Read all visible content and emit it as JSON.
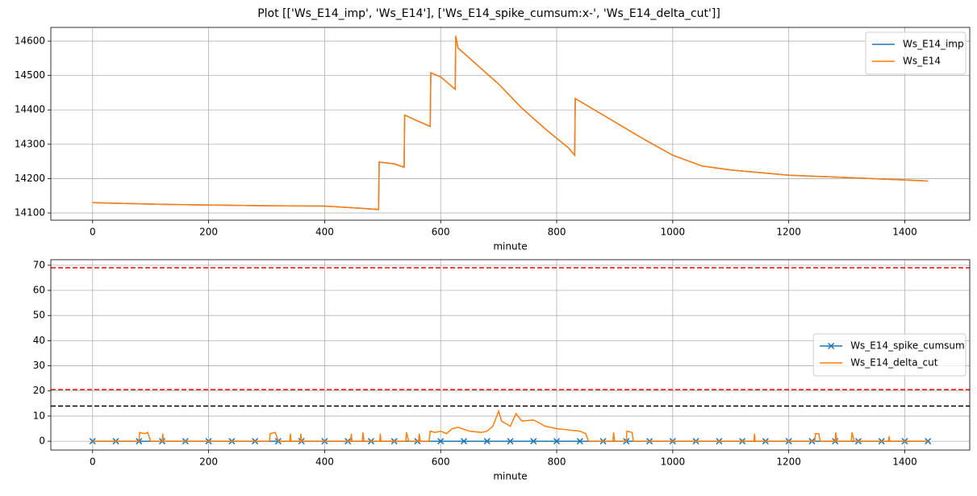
{
  "title": "Plot [['Ws_E14_imp', 'Ws_E14'], ['Ws_E14_spike_cumsum:x-', 'Ws_E14_delta_cut']]",
  "chart_data": [
    {
      "type": "line",
      "xlabel": "minute",
      "xlim": [
        -72,
        1512
      ],
      "ylim": [
        14079,
        14640
      ],
      "xticks": [
        0,
        200,
        400,
        600,
        800,
        1000,
        1200,
        1400
      ],
      "yticks": [
        14100,
        14200,
        14300,
        14400,
        14500,
        14600
      ],
      "grid": true,
      "legend": "upper right",
      "series": [
        {
          "name": "Ws_E14_imp",
          "color": "#1f77b4",
          "x": [
            0,
            120,
            300,
            400,
            460,
            493,
            494,
            520,
            537,
            538,
            560,
            582,
            583,
            600,
            625,
            626,
            630,
            660,
            700,
            740,
            780,
            820,
            831,
            832,
            860,
            900,
            950,
            1000,
            1050,
            1100,
            1200,
            1300,
            1440
          ],
          "values": [
            14130,
            14125,
            14121,
            14120,
            14114,
            14110,
            14248,
            14243,
            14233,
            14385,
            14368,
            14352,
            14508,
            14496,
            14460,
            14615,
            14580,
            14535,
            14475,
            14405,
            14345,
            14290,
            14268,
            14433,
            14405,
            14365,
            14315,
            14268,
            14237,
            14225,
            14210,
            14203,
            14193
          ]
        },
        {
          "name": "Ws_E14",
          "color": "#ff7f0e",
          "x": [
            0,
            120,
            300,
            400,
            460,
            493,
            494,
            520,
            537,
            538,
            560,
            582,
            583,
            600,
            625,
            626,
            630,
            660,
            700,
            740,
            780,
            820,
            831,
            832,
            860,
            900,
            950,
            1000,
            1050,
            1100,
            1200,
            1300,
            1440
          ],
          "values": [
            14130,
            14125,
            14121,
            14120,
            14114,
            14110,
            14248,
            14243,
            14233,
            14385,
            14368,
            14352,
            14508,
            14496,
            14460,
            14615,
            14580,
            14535,
            14475,
            14405,
            14345,
            14290,
            14268,
            14433,
            14405,
            14365,
            14315,
            14268,
            14237,
            14225,
            14210,
            14203,
            14193
          ]
        }
      ]
    },
    {
      "type": "line",
      "xlabel": "minute",
      "xlim": [
        -72,
        1512
      ],
      "ylim": [
        -3.5,
        72.2
      ],
      "xticks": [
        0,
        200,
        400,
        600,
        800,
        1000,
        1200,
        1400
      ],
      "yticks": [
        0,
        10,
        20,
        30,
        40,
        50,
        60,
        70
      ],
      "grid": true,
      "legend": "center right",
      "hlines": [
        {
          "value": 69,
          "color": "#ff0000",
          "linestyle": "dashed"
        },
        {
          "value": 20.5,
          "color": "#ff0000",
          "linestyle": "dashed"
        },
        {
          "value": 14,
          "color": "#000000",
          "linestyle": "dashed"
        }
      ],
      "series": [
        {
          "name": "Ws_E14_spike_cumsum",
          "color": "#1f77b4",
          "marker": "x",
          "x": [
            0,
            40,
            80,
            120,
            160,
            200,
            240,
            280,
            320,
            360,
            400,
            440,
            480,
            520,
            560,
            600,
            640,
            680,
            720,
            760,
            800,
            840,
            880,
            920,
            960,
            1000,
            1040,
            1080,
            1120,
            1160,
            1200,
            1240,
            1280,
            1320,
            1360,
            1400,
            1440
          ],
          "values": [
            0,
            0,
            0,
            0,
            0,
            0,
            0,
            0,
            0,
            0,
            0,
            0,
            0,
            0,
            0,
            0,
            0,
            0,
            0,
            0,
            0,
            0,
            0,
            0,
            0,
            0,
            0,
            0,
            0,
            0,
            0,
            0,
            0,
            0,
            0,
            0,
            0
          ]
        },
        {
          "name": "Ws_E14_delta_cut",
          "color": "#ff7f0e",
          "x": [
            0,
            80,
            81,
            90,
            95,
            100,
            120,
            121,
            122,
            305,
            306,
            315,
            320,
            340,
            341,
            342,
            358,
            359,
            360,
            445,
            446,
            447,
            465,
            466,
            468,
            495,
            496,
            497,
            540,
            541,
            545,
            562,
            563,
            565,
            580,
            582,
            590,
            600,
            610,
            620,
            630,
            650,
            670,
            680,
            690,
            700,
            705,
            720,
            730,
            740,
            760,
            780,
            800,
            820,
            840,
            850,
            855,
            897,
            898,
            900,
            920,
            921,
            930,
            932,
            1140,
            1141,
            1142,
            1245,
            1246,
            1252,
            1254,
            1280,
            1281,
            1283,
            1308,
            1309,
            1313,
            1372,
            1373,
            1374,
            1440
          ],
          "values": [
            0,
            0,
            3.5,
            3,
            3.5,
            0,
            0,
            3,
            0,
            0,
            3,
            3.5,
            0,
            0,
            3,
            0,
            0,
            3,
            0,
            0,
            3,
            0,
            0,
            3.5,
            0,
            0,
            3,
            0,
            0,
            3.5,
            0,
            0,
            3,
            0,
            0,
            4,
            3.5,
            4,
            3,
            5,
            5.5,
            4,
            3.5,
            4,
            6,
            12,
            8,
            6,
            11,
            8,
            8.5,
            6,
            5,
            4.5,
            4,
            3,
            0,
            0,
            3.5,
            0,
            0,
            4,
            3.5,
            0,
            0,
            3,
            0,
            0,
            3,
            3,
            0,
            0,
            3.5,
            0,
            0,
            3.5,
            0,
            0,
            2,
            0,
            0
          ]
        }
      ]
    }
  ]
}
